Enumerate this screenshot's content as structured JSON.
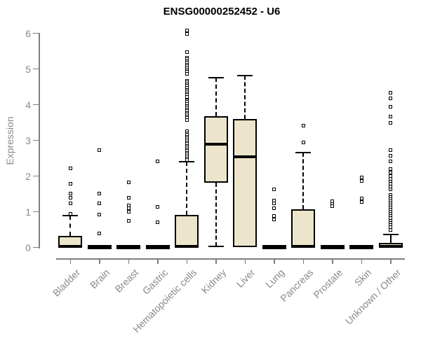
{
  "title": "ENSG00000252452 - U6",
  "ylabel": "Expression",
  "colors": {
    "box_fill": "#ece5cb",
    "box_stroke": "#000000",
    "axis": "#7f7f7f",
    "tick_label": "#8a8a8a",
    "title_color": "#000000"
  },
  "chart_data": {
    "type": "boxplot",
    "title": "ENSG00000252452 - U6",
    "xlabel": "",
    "ylabel": "Expression",
    "ylim": [
      0,
      6
    ],
    "yticks": [
      0,
      1,
      2,
      3,
      4,
      5,
      6
    ],
    "grid": false,
    "legend": false,
    "categories": [
      "Bladder",
      "Brain",
      "Breast",
      "Gastric",
      "Hematopoietic cells",
      "Kidney",
      "Liver",
      "Lung",
      "Pancreas",
      "Prostate",
      "Skin",
      "Unknown / Other"
    ],
    "boxes": [
      {
        "name": "Bladder",
        "q1": 0,
        "median": 0.02,
        "q3": 0.33,
        "whisker_low": null,
        "whisker_high": 0.89,
        "outliers": [
          2.22,
          1.79,
          1.51,
          1.4,
          1.24,
          0.94
        ]
      },
      {
        "name": "Brain",
        "q1": 0,
        "median": 0.02,
        "q3": 0.04,
        "whisker_low": null,
        "whisker_high": null,
        "outliers": [
          2.72,
          1.51,
          1.23,
          0.93,
          0.39
        ]
      },
      {
        "name": "Breast",
        "q1": 0,
        "median": 0.02,
        "q3": 0.04,
        "whisker_low": null,
        "whisker_high": null,
        "outliers": [
          1.83,
          1.4,
          1.17,
          1.09,
          1.0,
          0.74
        ]
      },
      {
        "name": "Gastric",
        "q1": 0,
        "median": 0.02,
        "q3": 0.04,
        "whisker_low": null,
        "whisker_high": null,
        "outliers": [
          2.42,
          1.14,
          0.71
        ]
      },
      {
        "name": "Hematopoietic cells",
        "q1": 0,
        "median": 0.03,
        "q3": 0.91,
        "whisker_low": null,
        "whisker_high": 2.4,
        "outliers": [
          6.08,
          5.98,
          5.47,
          5.32,
          5.27,
          5.22,
          5.17,
          5.12,
          5.07,
          5.02,
          4.97,
          4.92,
          4.87,
          4.67,
          4.62,
          4.57,
          4.52,
          4.47,
          4.42,
          4.37,
          4.32,
          4.27,
          4.22,
          4.12,
          4.07,
          4.02,
          3.97,
          3.92,
          3.87,
          3.82,
          3.77,
          3.72,
          3.67,
          3.62,
          3.57,
          3.25,
          3.2,
          3.15,
          3.1,
          3.05,
          3.0,
          2.95,
          2.9,
          2.85,
          2.8,
          2.75,
          2.7,
          2.65,
          2.6,
          2.55,
          2.5,
          2.45
        ]
      },
      {
        "name": "Kidney",
        "q1": 1.81,
        "median": 2.89,
        "q3": 3.67,
        "whisker_low": 0.02,
        "whisker_high": 4.75,
        "outliers": []
      },
      {
        "name": "Liver",
        "q1": 0,
        "median": 2.53,
        "q3": 3.59,
        "whisker_low": null,
        "whisker_high": 4.82,
        "outliers": []
      },
      {
        "name": "Lung",
        "q1": 0,
        "median": 0.02,
        "q3": 0.04,
        "whisker_low": null,
        "whisker_high": null,
        "outliers": [
          1.62,
          1.32,
          1.23,
          1.1,
          0.88,
          0.78
        ]
      },
      {
        "name": "Pancreas",
        "q1": 0,
        "median": 0.02,
        "q3": 1.06,
        "whisker_low": null,
        "whisker_high": 2.66,
        "outliers": [
          3.41,
          2.95
        ]
      },
      {
        "name": "Prostate",
        "q1": 0,
        "median": 0.02,
        "q3": 0.04,
        "whisker_low": null,
        "whisker_high": null,
        "outliers": [
          1.29,
          1.22,
          1.16
        ]
      },
      {
        "name": "Skin",
        "q1": 0,
        "median": 0.02,
        "q3": 0.04,
        "whisker_low": null,
        "whisker_high": null,
        "outliers": [
          1.96,
          1.87,
          1.37,
          1.27
        ]
      },
      {
        "name": "Unknown / Other",
        "q1": 0,
        "median": 0.02,
        "q3": 0.13,
        "whisker_low": null,
        "whisker_high": 0.37,
        "outliers": [
          4.33,
          4.17,
          3.94,
          3.66,
          3.49,
          2.72,
          2.56,
          2.42,
          2.2,
          2.1,
          2.0,
          1.92,
          1.85,
          1.78,
          1.7,
          1.63,
          1.48,
          1.42,
          1.36,
          1.3,
          1.24,
          1.18,
          1.12,
          1.06,
          1.0,
          0.94,
          0.88,
          0.82,
          0.75,
          0.68,
          0.62,
          0.56,
          0.5
        ]
      }
    ]
  }
}
